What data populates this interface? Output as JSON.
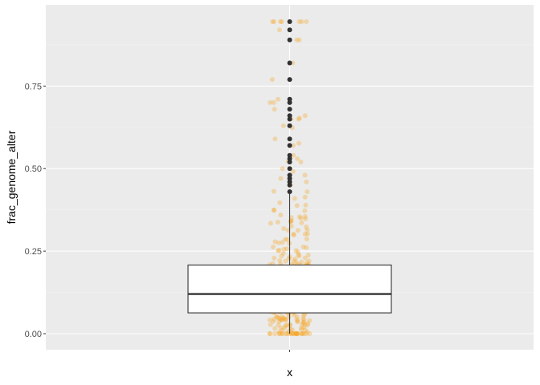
{
  "chart_data": {
    "type": "box",
    "title": "",
    "xlabel": "x",
    "ylabel": "frac_genome_alter",
    "categories": [
      ""
    ],
    "yticks": [
      0.0,
      0.25,
      0.5,
      0.75
    ],
    "ytick_labels": [
      "0.00",
      "0.25",
      "0.50",
      "0.75"
    ],
    "ylim": [
      -0.048,
      0.99
    ],
    "grid": true,
    "legend": "none",
    "box": {
      "lower_whisker": 0.0,
      "q1": 0.063,
      "median": 0.12,
      "q3": 0.208,
      "upper_whisker": 0.425
    },
    "outliers": [
      0.43,
      0.45,
      0.46,
      0.47,
      0.48,
      0.5,
      0.52,
      0.53,
      0.54,
      0.57,
      0.59,
      0.63,
      0.65,
      0.66,
      0.68,
      0.7,
      0.71,
      0.77,
      0.82,
      0.89,
      0.92,
      0.945
    ],
    "jitter_note": "about 450 semi-transparent jittered observation points",
    "colors": {
      "panel": "#ebebeb",
      "grid_major": "#ffffff",
      "grid_minor": "#f2f2f2",
      "box_fill": "#ffffff",
      "box_line": "#333333",
      "points": "#f5a623",
      "outliers": "#333333"
    }
  }
}
